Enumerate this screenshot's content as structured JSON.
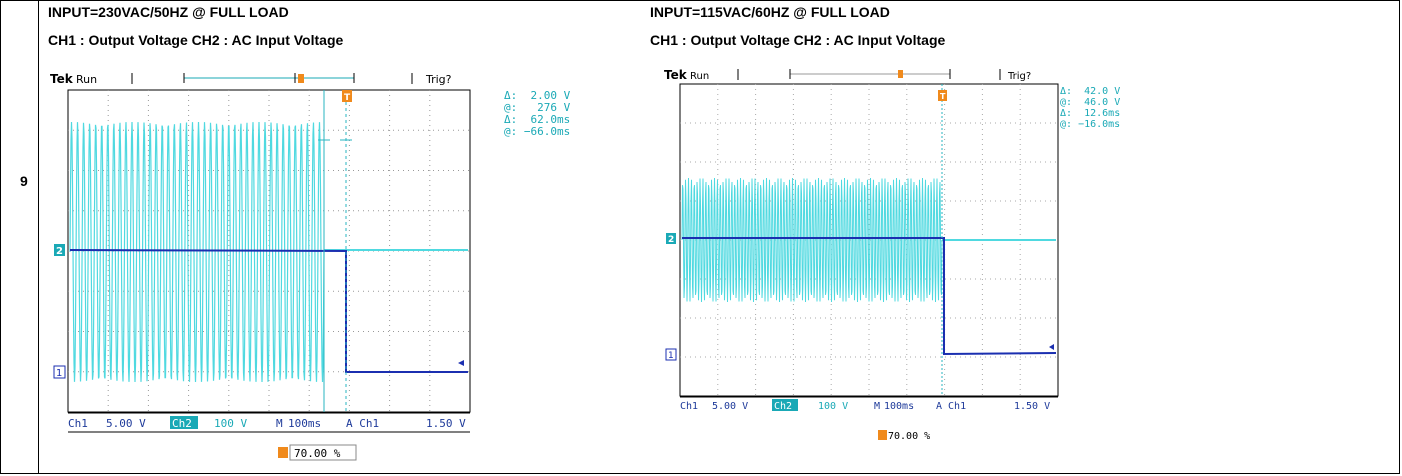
{
  "row_number": "9",
  "left": {
    "caption1": "INPUT=230VAC/50HZ @ FULL LOAD",
    "caption2": "CH1 : Output Voltage CH2 : AC Input Voltage",
    "scope": {
      "brand": "Tek",
      "mode": "Run",
      "trig": "Trig?",
      "delta_v": "2.00 V",
      "at_v": "276 V",
      "delta_t": "62.0ms",
      "at_t": "−66.0ms",
      "ch1_scale": "Ch1",
      "ch1_val": "5.00 V",
      "ch2_scale": "Ch2",
      "ch2_val": "100 V",
      "timebase_label": "M",
      "timebase": "100ms",
      "trig_src": "A  Ch1",
      "trig_level": "1.50 V",
      "position": "70.00 %",
      "marker1": "1",
      "marker2": "2",
      "t_marker": "T"
    }
  },
  "right": {
    "caption1": "INPUT=115VAC/60HZ @ FULL LOAD",
    "caption2": "CH1 : Output Voltage CH2 : AC Input Voltage",
    "scope": {
      "brand": "Tek",
      "mode": "Run",
      "trig": "Trig?",
      "delta_v": "42.0 V",
      "at_v": "46.0 V",
      "delta_t": "12.6ms",
      "at_t": "−16.0ms",
      "ch1_scale": "Ch1",
      "ch1_val": "5.00 V",
      "ch2_scale": "Ch2",
      "ch2_val": "100 V",
      "timebase_label": "M",
      "timebase": "100ms",
      "trig_src": "A  Ch1",
      "trig_level": "1.50 V",
      "position": "70.00 %",
      "marker1": "1",
      "marker2": "2",
      "t_marker": "T"
    }
  },
  "colors": {
    "ch1_trace": "#1b2fb0",
    "ch2_trace": "#4fd9e0",
    "cursor": "#2ab6c2",
    "trigger": "#f08a1c",
    "readout": "#1aa9b6",
    "bezel": "#1e3a9a"
  }
}
